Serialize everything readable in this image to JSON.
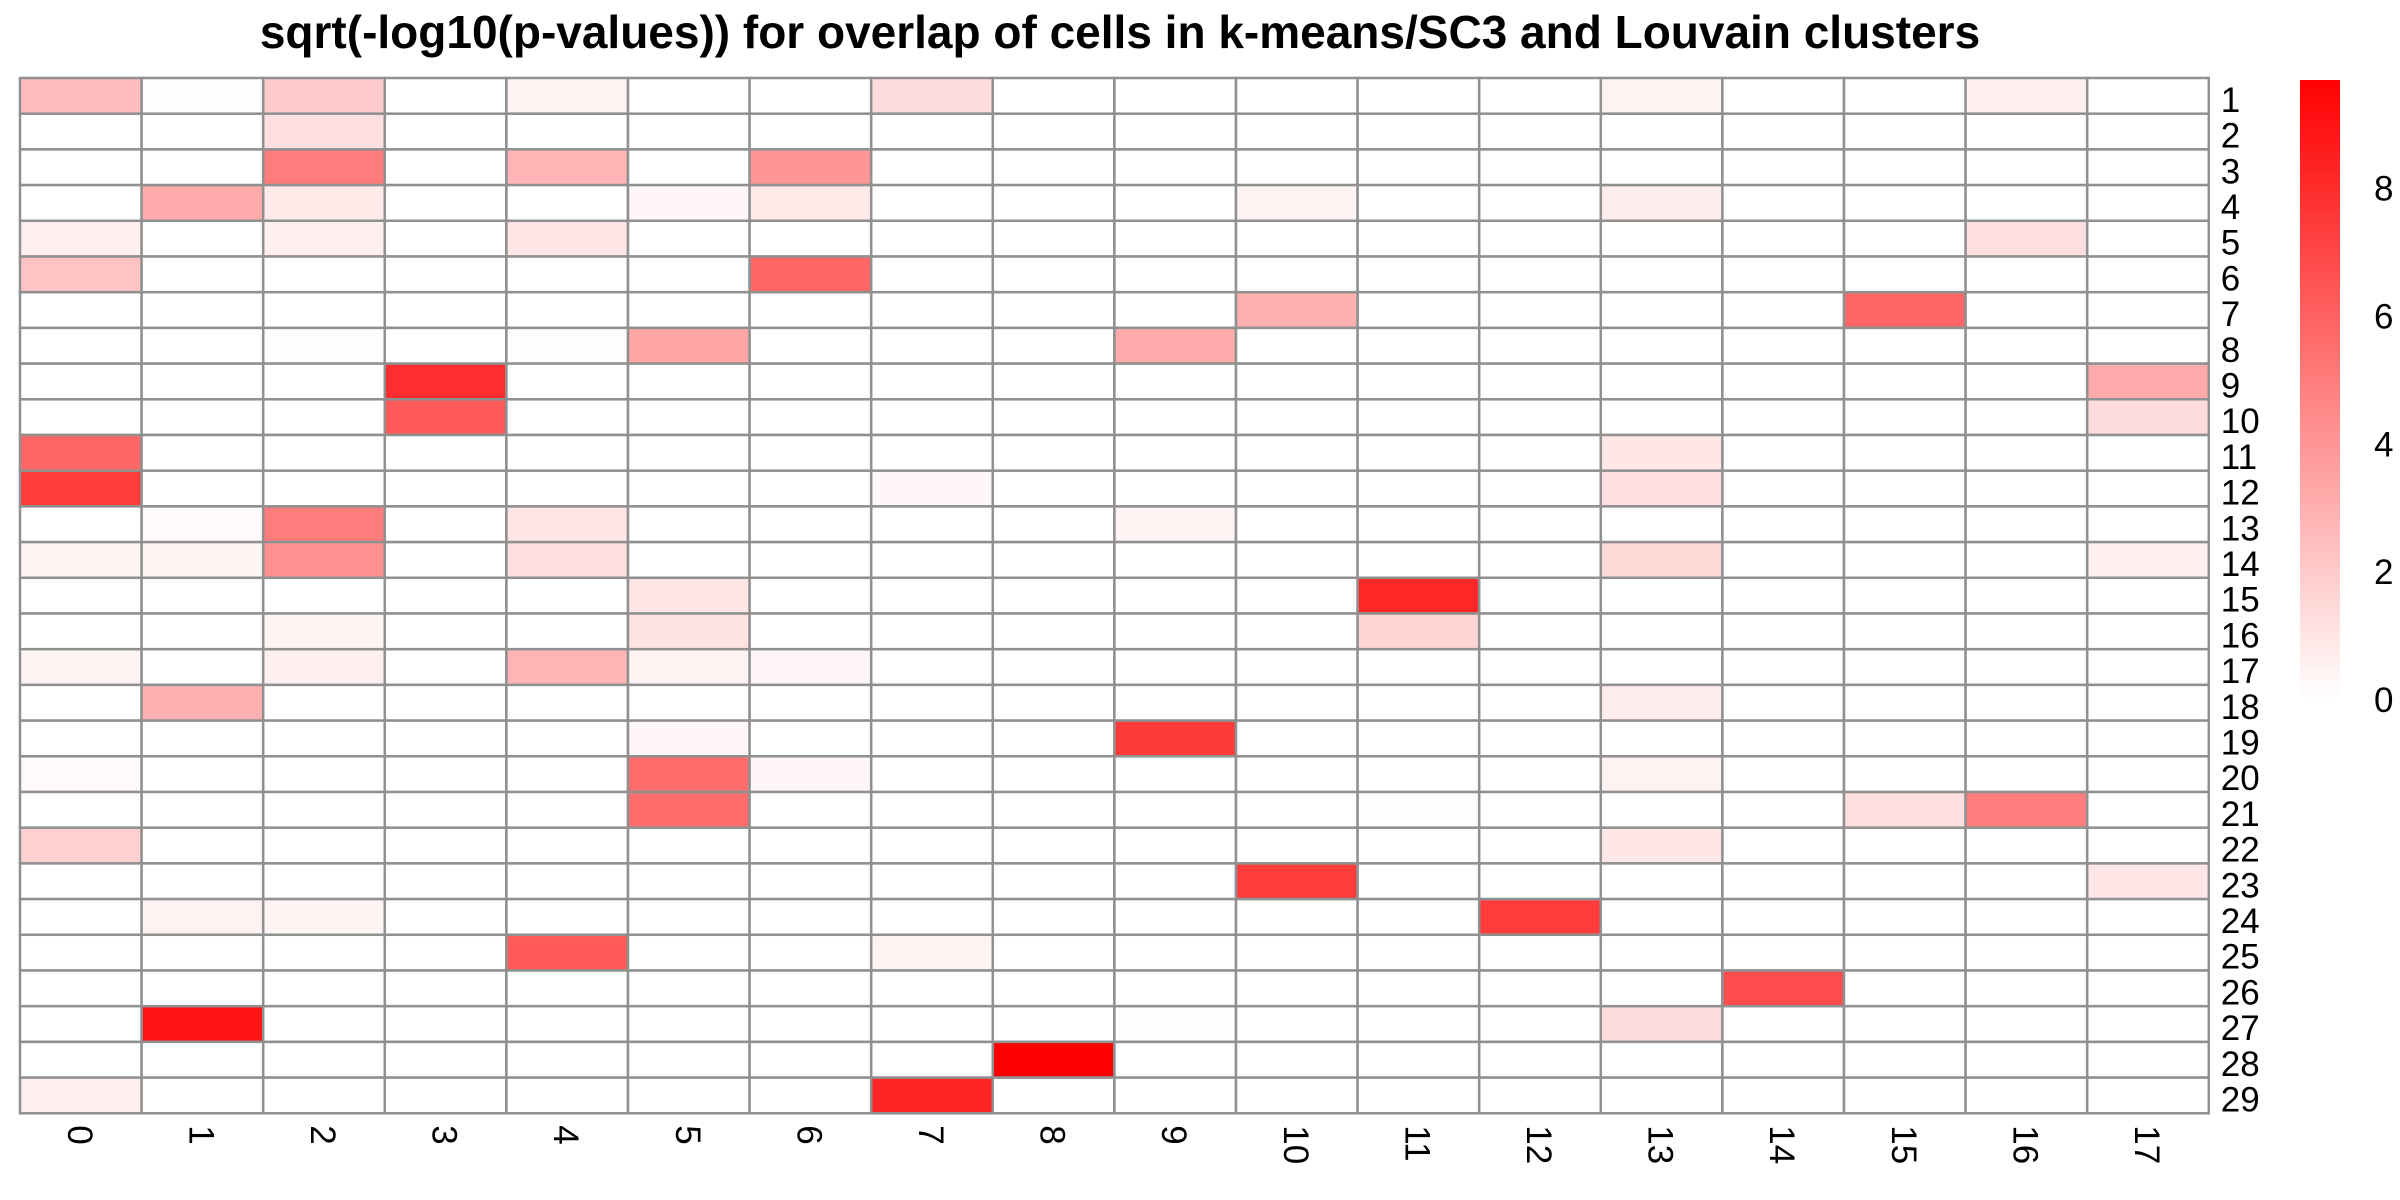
{
  "chart_data": {
    "type": "heatmap",
    "title": "sqrt(-log10(p-values)) for overlap of cells in k-means/SC3 and Louvain clusters",
    "columns": [
      "0",
      "1",
      "2",
      "3",
      "4",
      "5",
      "6",
      "7",
      "8",
      "9",
      "10",
      "11",
      "12",
      "13",
      "14",
      "15",
      "16",
      "17"
    ],
    "rows": [
      "1",
      "2",
      "3",
      "4",
      "5",
      "6",
      "7",
      "8",
      "9",
      "10",
      "11",
      "12",
      "13",
      "14",
      "15",
      "16",
      "17",
      "18",
      "19",
      "20",
      "21",
      "22",
      "23",
      "24",
      "25",
      "26",
      "27",
      "28",
      "29"
    ],
    "values": [
      [
        2.5,
        0.1,
        2.0,
        0,
        0.5,
        0,
        0,
        1.3,
        0,
        0,
        0,
        0,
        0,
        0.5,
        0,
        0,
        0.6,
        0
      ],
      [
        0,
        0,
        1.2,
        0,
        0,
        0,
        0,
        0,
        0,
        0,
        0,
        0,
        0,
        0,
        0,
        0,
        0,
        0
      ],
      [
        0,
        0,
        5.0,
        0,
        2.8,
        0,
        4.0,
        0,
        0,
        0,
        0,
        0,
        0,
        0,
        0,
        0,
        0,
        0
      ],
      [
        0,
        3.2,
        0.8,
        0,
        0,
        0.3,
        0.8,
        0,
        0,
        0,
        0.4,
        0,
        0,
        0.7,
        0,
        0,
        0,
        0
      ],
      [
        0.6,
        0,
        0.6,
        0,
        1.0,
        0,
        0,
        0,
        0,
        0,
        0,
        0,
        0,
        0,
        0,
        0,
        1.2,
        0
      ],
      [
        2.3,
        0,
        0,
        0,
        0,
        0,
        5.8,
        0,
        0,
        0,
        0,
        0,
        0,
        0,
        0,
        0,
        0,
        0
      ],
      [
        0,
        0,
        0,
        0,
        0,
        0,
        0,
        0,
        0,
        0,
        3.0,
        0,
        0,
        0,
        0,
        5.8,
        0,
        0
      ],
      [
        0,
        0,
        0.1,
        0,
        0.1,
        3.4,
        0,
        0,
        0,
        3.2,
        0,
        0,
        0,
        0,
        0,
        0,
        0,
        0
      ],
      [
        0,
        0,
        0,
        8.0,
        0,
        0,
        0,
        0,
        0,
        0,
        0,
        0,
        0,
        0,
        0,
        0,
        0,
        3.2
      ],
      [
        0,
        0,
        0,
        6.3,
        0,
        0,
        0,
        0,
        0,
        0,
        0,
        0,
        0,
        0,
        0,
        0,
        0,
        1.3
      ],
      [
        5.8,
        0,
        0,
        0,
        0,
        0,
        0,
        0,
        0,
        0,
        0,
        0,
        0,
        0.9,
        0,
        0,
        0,
        0
      ],
      [
        7.4,
        0,
        0,
        0,
        0,
        0,
        0,
        0.3,
        0,
        0,
        0,
        0,
        0,
        1.2,
        0,
        0,
        0,
        0
      ],
      [
        0,
        0.2,
        5.0,
        0,
        1.0,
        0,
        0,
        0,
        0,
        0.4,
        0,
        0,
        0,
        0,
        0,
        0,
        0,
        0
      ],
      [
        0.4,
        0.4,
        4.2,
        0,
        1.2,
        0,
        0,
        0,
        0,
        0,
        0,
        0,
        0,
        1.5,
        0,
        0,
        0,
        0.6
      ],
      [
        0,
        0,
        0,
        0,
        0,
        0.9,
        0,
        0,
        0,
        0,
        0,
        8.2,
        0,
        0,
        0,
        0,
        0,
        0
      ],
      [
        0,
        0,
        0.4,
        0,
        0,
        1.1,
        0,
        0,
        0,
        0,
        0,
        1.6,
        0,
        0,
        0,
        0,
        0,
        0
      ],
      [
        0.4,
        0,
        0.6,
        0,
        2.8,
        0.5,
        0.3,
        0,
        0,
        0,
        0,
        0,
        0,
        0,
        0,
        0,
        0,
        0
      ],
      [
        0,
        3.0,
        0,
        0,
        0,
        0,
        0,
        0,
        0,
        0,
        0,
        0,
        0,
        0.7,
        0,
        0,
        0,
        0
      ],
      [
        0,
        0,
        0,
        0,
        0,
        0.3,
        0,
        0,
        0,
        7.5,
        0,
        0,
        0,
        0,
        0,
        0,
        0,
        0
      ],
      [
        0.2,
        0,
        0,
        0,
        0,
        5.6,
        0.3,
        0,
        0,
        0,
        0,
        0,
        0,
        0.5,
        0,
        0,
        0,
        0
      ],
      [
        0,
        0,
        0,
        0,
        0,
        5.6,
        0,
        0,
        0,
        0,
        0,
        0.1,
        0,
        0,
        0,
        1.2,
        5.0,
        0
      ],
      [
        1.8,
        0,
        0,
        0,
        0,
        0,
        0,
        0,
        0,
        0,
        0,
        0,
        0,
        0.9,
        0,
        0,
        0,
        0
      ],
      [
        0,
        0,
        0,
        0,
        0,
        0,
        0,
        0,
        0,
        0,
        7.4,
        0,
        0,
        0,
        0,
        0,
        0,
        0.9
      ],
      [
        0,
        0.5,
        0.4,
        0,
        0,
        0,
        0,
        0,
        0,
        0,
        0,
        0,
        7.4,
        0,
        0,
        0,
        0,
        0
      ],
      [
        0,
        0,
        0,
        0,
        6.3,
        0,
        0,
        0.4,
        0,
        0,
        0,
        0,
        0,
        0,
        0,
        0,
        0,
        0
      ],
      [
        0,
        0,
        0,
        0,
        0,
        0,
        0,
        0,
        0,
        0,
        0,
        0,
        0,
        0,
        6.8,
        0,
        0,
        0
      ],
      [
        0,
        9.0,
        0,
        0,
        0,
        0,
        0,
        0,
        0,
        0.1,
        0,
        0,
        0,
        1.3,
        0,
        0,
        0,
        0
      ],
      [
        0,
        0,
        0,
        0,
        0,
        0,
        0,
        0,
        9.7,
        0,
        0,
        0,
        0,
        0,
        0,
        0,
        0,
        0
      ],
      [
        0.6,
        0,
        0,
        0,
        0,
        0,
        0,
        8.3,
        0,
        0,
        0,
        0,
        0,
        0,
        0,
        0,
        0,
        0
      ]
    ],
    "color_range": [
      0,
      9.7
    ],
    "colors": {
      "low": "#ffffff",
      "high": "#ff0000",
      "grid": "#909090"
    },
    "legend": {
      "position": "right",
      "ticks": [
        "0",
        "2",
        "4",
        "6",
        "8"
      ],
      "tick_values": [
        0,
        2,
        4,
        6,
        8
      ]
    }
  }
}
